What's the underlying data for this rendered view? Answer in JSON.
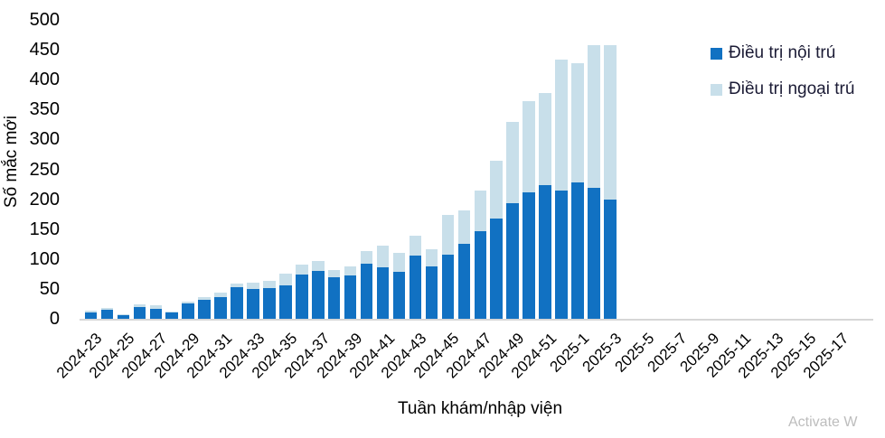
{
  "chart_data": {
    "type": "bar",
    "stacked": true,
    "ylabel": "Số mắc mới",
    "xlabel": "Tuần khám/nhập viện",
    "ylim": [
      0,
      500
    ],
    "yticks": [
      0,
      50,
      100,
      150,
      200,
      250,
      300,
      350,
      400,
      450,
      500
    ],
    "grid": false,
    "legend_position": "top-right",
    "categories": [
      "2024-23",
      "2024-24",
      "2024-25",
      "2024-26",
      "2024-27",
      "2024-28",
      "2024-29",
      "2024-30",
      "2024-31",
      "2024-32",
      "2024-33",
      "2024-34",
      "2024-35",
      "2024-36",
      "2024-37",
      "2024-38",
      "2024-39",
      "2024-40",
      "2024-41",
      "2024-42",
      "2024-43",
      "2024-44",
      "2024-45",
      "2024-46",
      "2024-47",
      "2024-48",
      "2024-49",
      "2024-50",
      "2024-51",
      "2024-52",
      "2025-1",
      "2025-2",
      "2025-3"
    ],
    "series": [
      {
        "name": "Điều trị nội trú",
        "color": "#1171C2",
        "values": [
          10,
          15,
          7,
          20,
          17,
          10,
          25,
          31,
          36,
          53,
          50,
          52,
          56,
          74,
          80,
          69,
          72,
          92,
          86,
          79,
          106,
          88,
          107,
          125,
          146,
          167,
          193,
          212,
          224,
          215,
          228,
          219,
          199
        ]
      },
      {
        "name": "Điều trị ngoại trú",
        "color": "#C8DFEA",
        "values": [
          3,
          3,
          1,
          4,
          5,
          2,
          3,
          5,
          8,
          6,
          11,
          12,
          20,
          16,
          16,
          13,
          15,
          21,
          36,
          31,
          33,
          28,
          66,
          56,
          68,
          98,
          136,
          152,
          154,
          218,
          199,
          239,
          259
        ]
      }
    ],
    "x_axis_ticks": [
      "2024-23",
      "2024-25",
      "2024-27",
      "2024-29",
      "2024-31",
      "2024-33",
      "2024-35",
      "2024-37",
      "2024-39",
      "2024-41",
      "2024-43",
      "2024-45",
      "2024-47",
      "2024-49",
      "2024-51",
      "2025-1",
      "2025-3",
      "2025-5",
      "2025-7",
      "2025-9",
      "2025-11",
      "2025-13",
      "2025-15",
      "2025-17"
    ],
    "x_tick_slot_interval": 2
  },
  "watermark": "Activate W"
}
